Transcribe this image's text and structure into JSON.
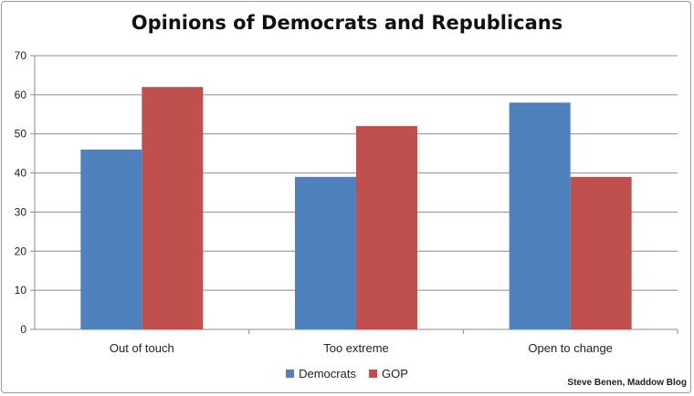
{
  "chart_data": {
    "type": "bar",
    "title": "Opinions of Democrats and Republicans",
    "categories": [
      "Out of touch",
      "Too extreme",
      "Open to change"
    ],
    "series": [
      {
        "name": "Democrats",
        "color": "#4f81bd",
        "values": [
          46,
          39,
          58
        ]
      },
      {
        "name": "GOP",
        "color": "#c0504d",
        "values": [
          62,
          52,
          39
        ]
      }
    ],
    "ylim": [
      0,
      70
    ],
    "yticks": [
      0,
      10,
      20,
      30,
      40,
      50,
      60,
      70
    ],
    "grid": true,
    "legend_position": "bottom",
    "xlabel": "",
    "ylabel": ""
  },
  "credit": "Steve Benen, Maddow Blog"
}
